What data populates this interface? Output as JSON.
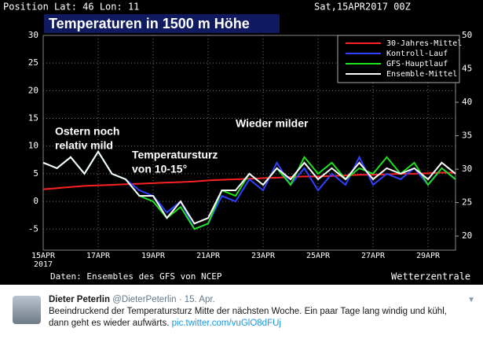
{
  "chart_data": {
    "type": "line",
    "title": "Temperaturen in 1500 m Höhe",
    "header_left": "Position  Lat: 46 Lon: 11",
    "header_right": "Sat,15APR2017 00Z",
    "footer_left": "Daten: Ensembles des GFS von NCEP",
    "footer_right": "Wetterzentrale",
    "x_year_label": "2017",
    "annotations": [
      {
        "lines": [
          "Ostern noch",
          "relativ mild"
        ]
      },
      {
        "lines": [
          "Temperatursturz",
          "von 10-15°"
        ]
      },
      {
        "lines": [
          "Wieder milder"
        ]
      }
    ],
    "categories": [
      "15APR",
      null,
      null,
      null,
      "17APR",
      null,
      null,
      null,
      "19APR",
      null,
      null,
      null,
      "21APR",
      null,
      null,
      null,
      "23APR",
      null,
      null,
      null,
      "25APR",
      null,
      null,
      null,
      "27APR",
      null,
      null,
      null,
      "29APR",
      null,
      null
    ],
    "series": [
      {
        "name": "30-Jahres-Mittel",
        "color": "#ff2020",
        "values": [
          2.2,
          2.4,
          2.6,
          2.8,
          2.9,
          3.0,
          3.1,
          3.2,
          3.3,
          3.4,
          3.5,
          3.6,
          3.8,
          3.9,
          4.0,
          4.1,
          4.2,
          4.3,
          4.4,
          4.5,
          4.5,
          4.6,
          4.7,
          4.8,
          4.8,
          4.9,
          5.0,
          5.0,
          5.1,
          5.2,
          5.2
        ]
      },
      {
        "name": "Kontroll-Lauf",
        "color": "#3040ff",
        "values": [
          7,
          6,
          8,
          5,
          9,
          5,
          4,
          2,
          1,
          -2,
          0,
          -5,
          -4,
          1,
          0,
          4,
          2,
          7,
          3,
          6,
          2,
          5,
          3,
          8,
          3,
          5,
          4,
          6,
          3,
          6,
          4
        ]
      },
      {
        "name": "GFS-Hauptlauf",
        "color": "#20e020",
        "values": [
          7,
          6,
          8,
          5,
          9,
          5,
          4,
          1,
          0,
          -3,
          -1,
          -5,
          -4,
          2,
          1,
          5,
          3,
          6,
          3,
          8,
          5,
          7,
          4,
          6,
          5,
          8,
          5,
          7,
          3,
          6,
          4
        ]
      },
      {
        "name": "Ensemble-Mittel",
        "color": "#ffffff",
        "values": [
          7,
          6,
          8,
          5,
          9,
          5,
          4,
          1,
          1,
          -3,
          0,
          -4,
          -3,
          2,
          2,
          5,
          3,
          6,
          4,
          7,
          4,
          6,
          4,
          7,
          4,
          6,
          5,
          6,
          4,
          7,
          5
        ]
      }
    ],
    "ylim": [
      -8.8,
      30
    ],
    "yticks": [
      -5,
      0,
      5,
      10,
      15,
      20,
      25,
      30
    ],
    "y2lim": [
      17.9,
      50
    ],
    "y2ticks": [
      20,
      25,
      30,
      35,
      40,
      45,
      50
    ],
    "grid": true,
    "legend": "upper right"
  },
  "tweet": {
    "name": "Dieter Peterlin",
    "meta": "@DieterPeterlin · 15. Apr.",
    "text": "Beeindruckend der Temperatursturz Mitte der nächsten Woche. Ein paar Tage lang windig und kühl, dann geht es wieder aufwärts.",
    "link": "pic.twitter.com/vuGlO8dFUj"
  }
}
